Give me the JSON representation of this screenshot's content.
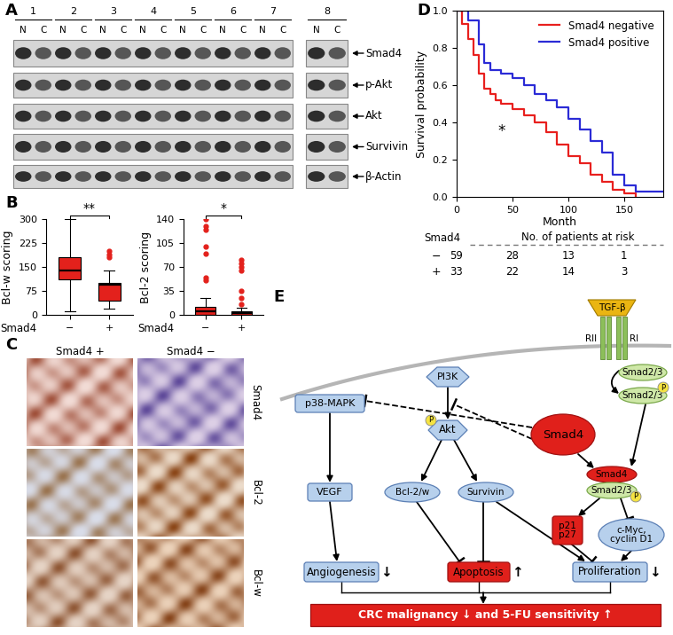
{
  "panel_labels": [
    "A",
    "B",
    "C",
    "D",
    "E"
  ],
  "blot": {
    "lanes": [
      "1",
      "2",
      "3",
      "4",
      "5",
      "6",
      "7",
      "8"
    ],
    "fractions": [
      "N",
      "C"
    ],
    "proteins": [
      "Smad4",
      "p-Akt",
      "Akt",
      "Survivin",
      "β-Actin"
    ]
  },
  "chart_data": [
    {
      "type": "box",
      "ylabel": "Bcl-w scoring",
      "xlabel": "Smad4",
      "categories": [
        "−",
        "+"
      ],
      "color": "#e3211c",
      "ylim": [
        0,
        300
      ],
      "yticks": [
        0,
        75,
        150,
        225,
        300
      ],
      "boxes": [
        {
          "whislo": 10,
          "q1": 110,
          "med": 140,
          "q3": 180,
          "whishi": 300,
          "fliers": []
        },
        {
          "whislo": 20,
          "q1": 45,
          "med": 95,
          "q3": 100,
          "whishi": 140,
          "fliers": [
            180,
            190,
            200
          ]
        }
      ],
      "significance": "**"
    },
    {
      "type": "box",
      "ylabel": "Bcl-2 scoring",
      "xlabel": "Smad4",
      "categories": [
        "−",
        "+"
      ],
      "color": "#e3211c",
      "ylim": [
        0,
        140
      ],
      "yticks": [
        0,
        35,
        70,
        105,
        140
      ],
      "boxes": [
        {
          "whislo": 0,
          "q1": 0,
          "med": 5,
          "q3": 12,
          "whishi": 25,
          "fliers": [
            50,
            55,
            90,
            100,
            125,
            130,
            140
          ]
        },
        {
          "whislo": 0,
          "q1": 0,
          "med": 2,
          "q3": 5,
          "whishi": 10,
          "fliers": [
            15,
            25,
            35,
            65,
            70,
            75,
            80
          ]
        }
      ],
      "significance": "*"
    },
    {
      "type": "step",
      "xlabel": "Month",
      "ylabel": "Survival probability",
      "xlim": [
        0,
        185
      ],
      "xticks": [
        0,
        50,
        100,
        150
      ],
      "ylim": [
        0,
        1
      ],
      "yticks": [
        {
          "value": 0,
          "label": "0.0"
        },
        0.2,
        0.4,
        0.6,
        0.8,
        {
          "value": 1,
          "label": "1.0"
        }
      ],
      "legend": "upper right",
      "series": [
        {
          "name": "Smad4 negative",
          "color": "#e8201e",
          "x": [
            0,
            5,
            10,
            15,
            20,
            25,
            30,
            35,
            40,
            50,
            60,
            70,
            80,
            90,
            100,
            110,
            120,
            130,
            140,
            150,
            160
          ],
          "values": [
            1.0,
            0.93,
            0.85,
            0.76,
            0.66,
            0.58,
            0.55,
            0.52,
            0.5,
            0.47,
            0.44,
            0.4,
            0.35,
            0.28,
            0.22,
            0.18,
            0.12,
            0.08,
            0.04,
            0.02,
            0.0
          ]
        },
        {
          "name": "Smad4 positive",
          "color": "#2b2bd6",
          "x": [
            0,
            10,
            20,
            25,
            30,
            40,
            50,
            60,
            70,
            80,
            90,
            100,
            110,
            120,
            130,
            140,
            150,
            160,
            185
          ],
          "values": [
            1.0,
            0.95,
            0.82,
            0.72,
            0.68,
            0.66,
            0.64,
            0.6,
            0.55,
            0.52,
            0.48,
            0.42,
            0.36,
            0.3,
            0.24,
            0.12,
            0.06,
            0.03,
            0.03
          ]
        }
      ],
      "annotation": {
        "text": "*",
        "x": 40,
        "y": 0.35
      },
      "risk_table": {
        "header": [
          "Smad4",
          "No. of patients at risk"
        ],
        "times": [
          0,
          50,
          100,
          150
        ],
        "rows": [
          {
            "label": "−",
            "values": [
              59,
              28,
              13,
              1
            ]
          },
          {
            "label": "+",
            "values": [
              33,
              22,
              14,
              3
            ]
          }
        ]
      }
    }
  ],
  "ihc": {
    "columns": [
      "Smad4 +",
      "Smad4 −"
    ],
    "rows": [
      "Smad4",
      "Bcl-2",
      "Bcl-w"
    ]
  },
  "diagram": {
    "ligand": "TGF-β",
    "receptors": [
      "RII",
      "RI"
    ],
    "nodes": [
      "Smad2/3",
      "Smad2/3",
      "PI3K",
      "p38-MAPK",
      "Akt",
      "Smad4",
      "Smad4",
      "Smad2/3",
      "VEGF",
      "Bcl-2/w",
      "Survivin",
      "p21\np27",
      "c-Myc,\ncyclin D1"
    ],
    "phospho": "P",
    "outcomes": [
      {
        "label": "Angiogenesis",
        "arrow": "↓"
      },
      {
        "label": "Apoptosis",
        "arrow": "↑"
      },
      {
        "label": "Proliferation",
        "arrow": "↓"
      }
    ],
    "result": "CRC malignancy ↓ and 5-FU sensitivity ↑"
  }
}
